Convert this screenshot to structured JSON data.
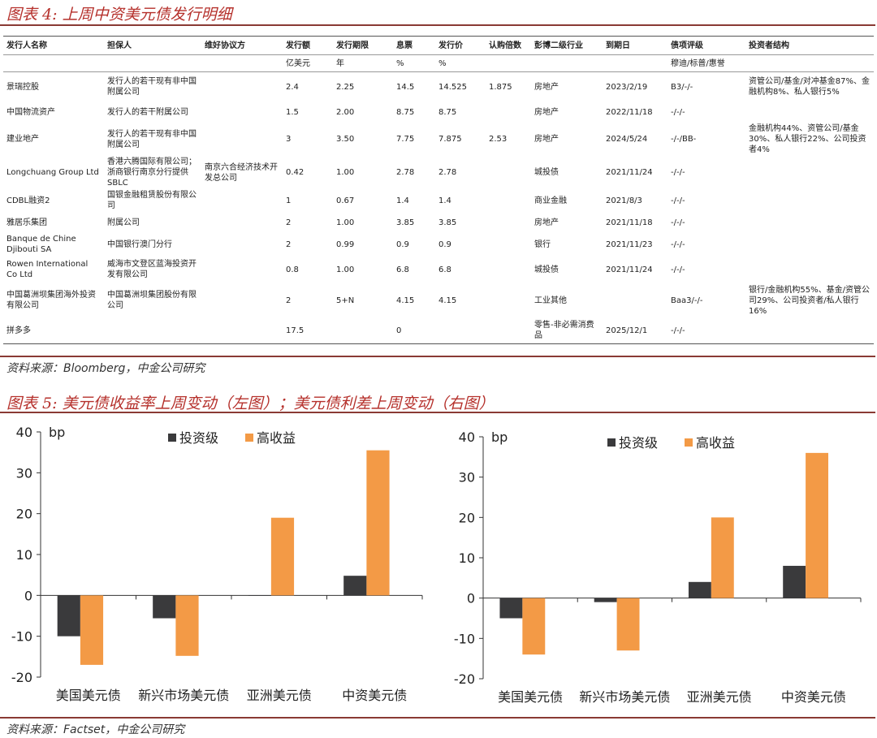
{
  "figure4": {
    "title": "图表 4: 上周中资美元债发行明细",
    "headers": [
      "发行人名称",
      "担保人",
      "维好协议方",
      "发行额",
      "发行期限",
      "息票",
      "发行价",
      "认购倍数",
      "彭博二级行业",
      "到期日",
      "债项评级",
      "投资者结构"
    ],
    "units": [
      "",
      "",
      "",
      "亿美元",
      "年",
      "%",
      "%",
      "",
      "",
      "",
      "穆迪/标普/惠誉",
      ""
    ],
    "rows": [
      [
        "景瑞控股",
        "发行人的若干现有非中国附属公司",
        "",
        "2.4",
        "2.25",
        "14.5",
        "14.525",
        "1.875",
        "房地产",
        "2023/2/19",
        "B3/-/-",
        "资管公司/基金/对冲基金87%、金融机构8%、私人银行5%"
      ],
      [
        "中国物流资产",
        "发行人的若干附属公司",
        "",
        "1.5",
        "2.00",
        "8.75",
        "8.75",
        "",
        "房地产",
        "2022/11/18",
        "-/-/-",
        ""
      ],
      [
        "建业地产",
        "发行人的若干现有非中国附属公司",
        "",
        "3",
        "3.50",
        "7.75",
        "7.875",
        "2.53",
        "房地产",
        "2024/5/24",
        "-/-/BB-",
        "金融机构44%、资管公司/基金30%、私人银行22%、公司投资者4%"
      ],
      [
        "Longchuang Group Ltd",
        "香港六腾国际有限公司；浙商银行南京分行提供SBLC",
        "南京六合经济技术开发总公司",
        "0.42",
        "1.00",
        "2.78",
        "2.78",
        "",
        "城投债",
        "2021/11/24",
        "-/-/-",
        ""
      ],
      [
        "CDBL融资2",
        "国银金融租赁股份有限公司",
        "",
        "1",
        "0.67",
        "1.4",
        "1.4",
        "",
        "商业金融",
        "2021/8/3",
        "-/-/-",
        ""
      ],
      [
        "雅居乐集团",
        "附属公司",
        "",
        "2",
        "1.00",
        "3.85",
        "3.85",
        "",
        "房地产",
        "2021/11/18",
        "-/-/-",
        ""
      ],
      [
        "Banque de Chine Djibouti SA",
        "中国银行澳门分行",
        "",
        "2",
        "0.99",
        "0.9",
        "0.9",
        "",
        "银行",
        "2021/11/23",
        "-/-/-",
        ""
      ],
      [
        "Rowen International Co Ltd",
        "威海市文登区蓝海投资开发有限公司",
        "",
        "0.8",
        "1.00",
        "6.8",
        "6.8",
        "",
        "城投债",
        "2021/11/24",
        "-/-/-",
        ""
      ],
      [
        "中国葛洲坝集团海外投资有限公司",
        "中国葛洲坝集团股份有限公司",
        "",
        "2",
        "5+N",
        "4.15",
        "4.15",
        "",
        "工业其他",
        "",
        "Baa3/-/-",
        "银行/金融机构55%、基金/资管公司29%、公司投资者/私人银行16%"
      ],
      [
        "拼多多",
        "",
        "",
        "17.5",
        "",
        "0",
        "",
        "",
        "零售-非必需消费品",
        "2025/12/1",
        "-/-/-",
        ""
      ]
    ],
    "source": "资料来源：Bloomberg，中金公司研究"
  },
  "figure5": {
    "title": "图表 5: 美元债收益率上周变动（左图）；美元债利差上周变动（右图）",
    "source": "资料来源：Factset，中金公司研究"
  },
  "colors": {
    "investment_grade": "#3a3a3c",
    "high_yield": "#f39a46",
    "title_red": "#b5302b"
  },
  "chart_data": [
    {
      "type": "bar",
      "unit_label": "bp",
      "categories": [
        "美国美元债",
        "新兴市场美元债",
        "亚洲美元债",
        "中资美元债"
      ],
      "series": [
        {
          "name": "投资级",
          "values": [
            -10,
            -5.6,
            0,
            4.8
          ]
        },
        {
          "name": "高收益",
          "values": [
            -17,
            -14.8,
            19,
            35.5
          ]
        }
      ],
      "ylim": [
        -20,
        40
      ],
      "yticks": [
        -20,
        -10,
        0,
        10,
        20,
        30,
        40
      ],
      "legend": "top"
    },
    {
      "type": "bar",
      "unit_label": "bp",
      "categories": [
        "美国美元债",
        "新兴市场美元债",
        "亚洲美元债",
        "中资美元债"
      ],
      "series": [
        {
          "name": "投资级",
          "values": [
            -5,
            -1,
            4,
            8
          ]
        },
        {
          "name": "高收益",
          "values": [
            -14,
            -13,
            20,
            36
          ]
        }
      ],
      "ylim": [
        -20,
        40
      ],
      "yticks": [
        -20,
        -10,
        0,
        10,
        20,
        30,
        40
      ],
      "legend": "top"
    }
  ]
}
